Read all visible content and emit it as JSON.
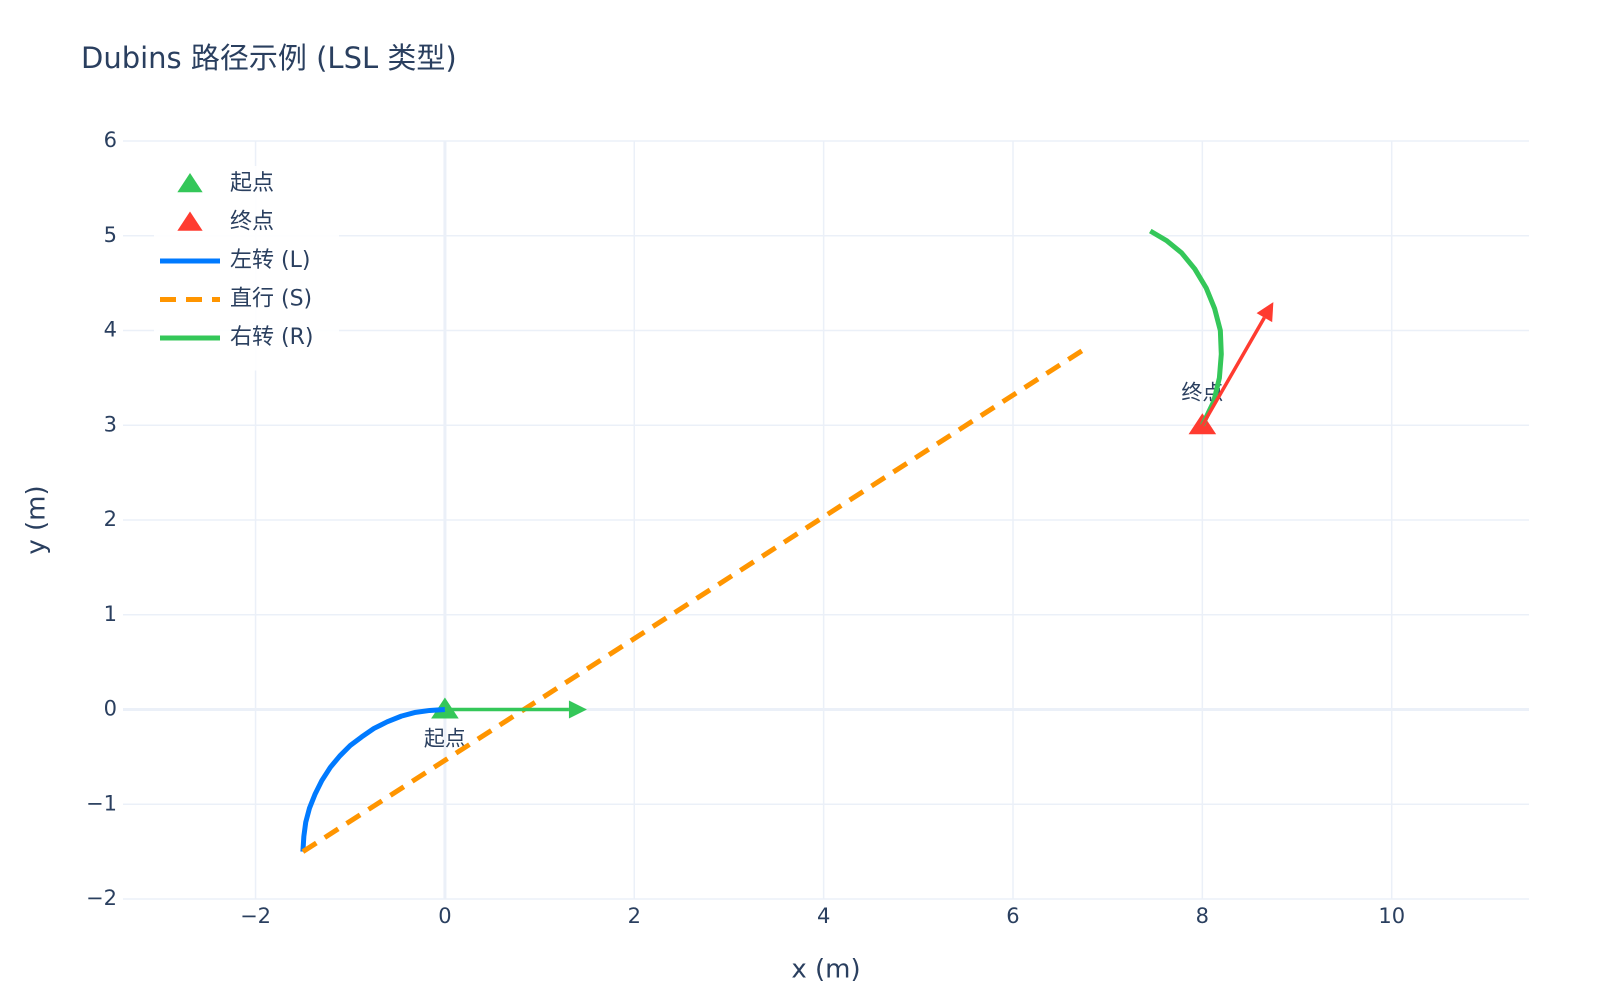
{
  "chart_data": {
    "type": "line",
    "title": "Dubins 路径示例 (LSL 类型)",
    "xlabel": "x (m)",
    "ylabel": "y (m)",
    "xlim": [
      -3.4,
      11.45
    ],
    "ylim": [
      -2,
      6
    ],
    "xticks": [
      {
        "value": -2,
        "label": "−2"
      },
      0,
      2,
      4,
      6,
      8,
      10
    ],
    "yticks": [
      {
        "value": -2,
        "label": "−2"
      },
      {
        "value": -1,
        "label": "−1"
      },
      0,
      1,
      2,
      3,
      4,
      5,
      6
    ],
    "grid": true,
    "legend": "top-left",
    "series": [
      {
        "name": "起点",
        "mode": "markers",
        "symbol": "triangle-up",
        "color": "#34c759",
        "x": [
          0
        ],
        "y": [
          0
        ],
        "text": [
          "起点"
        ],
        "textposition": "bottom"
      },
      {
        "name": "终点",
        "mode": "markers",
        "symbol": "triangle-up",
        "color": "#ff3b30",
        "x": [
          8
        ],
        "y": [
          3
        ],
        "text": [
          "终点"
        ],
        "textposition": "top"
      },
      {
        "name": "左转 (L)",
        "mode": "lines",
        "dash": "solid",
        "color": "#007aff",
        "x": [
          0,
          -0.16,
          -0.31,
          -0.46,
          -0.61,
          -0.75,
          -0.88,
          -1.0,
          -1.11,
          -1.21,
          -1.3,
          -1.37,
          -1.43,
          -1.47,
          -1.49,
          -1.5
        ],
        "y": [
          0,
          -0.01,
          -0.03,
          -0.07,
          -0.13,
          -0.2,
          -0.29,
          -0.38,
          -0.49,
          -0.61,
          -0.75,
          -0.89,
          -1.04,
          -1.19,
          -1.34,
          -1.5
        ]
      },
      {
        "name": "直行 (S)",
        "mode": "lines",
        "dash": "dash",
        "color": "#ff9500",
        "x": [
          -1.5,
          6.75
        ],
        "y": [
          -1.5,
          3.8
        ]
      },
      {
        "name": "右转 (R)",
        "mode": "lines",
        "dash": "solid",
        "color": "#34c759",
        "x": [
          7.45,
          7.62,
          7.78,
          7.92,
          8.04,
          8.13,
          8.19,
          8.2,
          8.18,
          8.12,
          8.0
        ],
        "y": [
          5.05,
          4.95,
          4.82,
          4.65,
          4.45,
          4.23,
          4.0,
          3.75,
          3.5,
          3.25,
          3.0
        ]
      }
    ],
    "arrows": [
      {
        "x": 0,
        "y": 0,
        "ax": 1.5,
        "ay": 0,
        "color": "#34c759"
      },
      {
        "x": 8,
        "y": 3,
        "ax": 8.75,
        "ay": 4.3,
        "color": "#ff3b30"
      }
    ]
  }
}
